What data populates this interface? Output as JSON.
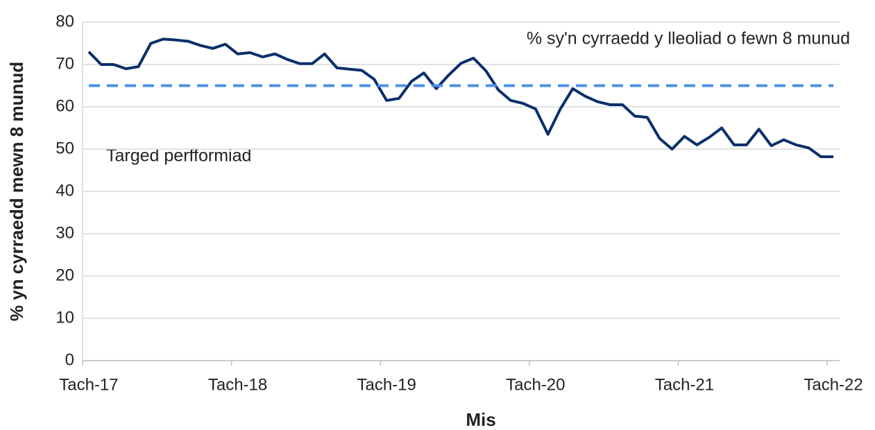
{
  "chart_data": {
    "type": "line",
    "x_label": "Mis",
    "y_label": "% yn cyrraedd mewn 8 munud",
    "categories": [
      "Tach-17",
      null,
      null,
      null,
      null,
      null,
      null,
      null,
      null,
      null,
      null,
      null,
      "Tach-18",
      null,
      null,
      null,
      null,
      null,
      null,
      null,
      null,
      null,
      null,
      null,
      "Tach-19",
      null,
      null,
      null,
      null,
      null,
      null,
      null,
      null,
      null,
      null,
      null,
      "Tach-20",
      null,
      null,
      null,
      null,
      null,
      null,
      null,
      null,
      null,
      null,
      null,
      "Tach-21",
      null,
      null,
      null,
      null,
      null,
      null,
      null,
      null,
      null,
      null,
      null,
      "Tach-22"
    ],
    "series": [
      {
        "name": "% sy'n cyrraedd y lleoliad o fewn 8 munud",
        "color": "#0b2f6b",
        "dashed": false,
        "values": [
          73,
          70,
          70,
          69,
          69.5,
          75,
          76,
          75.8,
          75.5,
          74.5,
          73.8,
          74.8,
          72.5,
          72.8,
          71.8,
          72.5,
          71.2,
          70.2,
          70.2,
          72.5,
          69.2,
          68.9,
          68.6,
          66.5,
          61.5,
          62,
          66,
          68,
          64.3,
          67.5,
          70.3,
          71.5,
          68.5,
          64,
          61.5,
          60.8,
          59.5,
          53.5,
          59.5,
          64.3,
          62.5,
          61.2,
          60.5,
          60.5,
          57.8,
          57.5,
          52.5,
          50,
          53,
          51,
          52.8,
          55,
          51,
          51,
          54.7,
          50.8,
          52.2,
          51,
          50.3,
          48.2,
          48.2
        ]
      },
      {
        "name": "Targed perfformiad",
        "color": "#4a90e8",
        "dashed": true,
        "values": [
          65,
          65,
          65,
          65,
          65,
          65,
          65,
          65,
          65,
          65,
          65,
          65,
          65,
          65,
          65,
          65,
          65,
          65,
          65,
          65,
          65,
          65,
          65,
          65,
          65,
          65,
          65,
          65,
          65,
          65,
          65,
          65,
          65,
          65,
          65,
          65,
          65,
          65,
          65,
          65,
          65,
          65,
          65,
          65,
          65,
          65,
          65,
          65,
          65,
          65,
          65,
          65,
          65,
          65,
          65,
          65,
          65,
          65,
          65,
          65,
          65
        ]
      }
    ],
    "ylim": [
      0,
      80
    ],
    "yticks": [
      0,
      10,
      20,
      30,
      40,
      50,
      60,
      70,
      80
    ],
    "grid": true
  }
}
